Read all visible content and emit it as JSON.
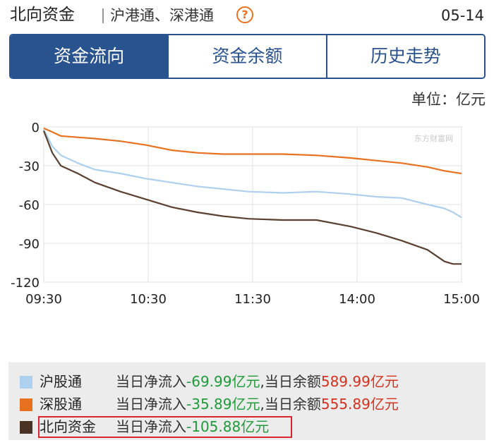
{
  "header": {
    "title": "北向资金",
    "subtitle": "沪港通、深港通",
    "help_symbol": "?",
    "date": "05-14"
  },
  "tabs": [
    {
      "label": "资金流向",
      "active": true
    },
    {
      "label": "资金余额",
      "active": false
    },
    {
      "label": "历史走势",
      "active": false
    }
  ],
  "unit_label": "单位：亿元",
  "watermark": "东方财富网",
  "colors": {
    "accent": "#28538f",
    "hgt": "#aed0ef",
    "sgt": "#e8711f",
    "north": "#5a4030",
    "positive": "#1f9b3a",
    "negative": "#d5311f"
  },
  "chart_data": {
    "type": "line",
    "x_ticks": [
      "09:30",
      "10:30",
      "11:30",
      "14:00",
      "15:00"
    ],
    "y_ticks": [
      0,
      -30,
      -60,
      -90,
      -120
    ],
    "ylim": [
      -120,
      0
    ],
    "grid": true,
    "series": [
      {
        "name": "沪股通",
        "color": "#aed0ef",
        "points": [
          [
            0,
            -2
          ],
          [
            5,
            -15
          ],
          [
            10,
            -22
          ],
          [
            20,
            -28
          ],
          [
            30,
            -33
          ],
          [
            45,
            -36
          ],
          [
            60,
            -40
          ],
          [
            75,
            -43
          ],
          [
            90,
            -46
          ],
          [
            105,
            -48
          ],
          [
            120,
            -50
          ],
          [
            140,
            -51
          ],
          [
            160,
            -50
          ],
          [
            180,
            -52
          ],
          [
            195,
            -54
          ],
          [
            210,
            -55
          ],
          [
            225,
            -60
          ],
          [
            235,
            -63
          ],
          [
            240,
            -66
          ],
          [
            245,
            -70
          ]
        ]
      },
      {
        "name": "深股通",
        "color": "#e8711f",
        "points": [
          [
            0,
            -1
          ],
          [
            5,
            -4
          ],
          [
            10,
            -7
          ],
          [
            20,
            -8
          ],
          [
            30,
            -9
          ],
          [
            45,
            -11
          ],
          [
            60,
            -14
          ],
          [
            75,
            -18
          ],
          [
            90,
            -20
          ],
          [
            105,
            -21
          ],
          [
            120,
            -21
          ],
          [
            140,
            -21
          ],
          [
            160,
            -22
          ],
          [
            180,
            -24
          ],
          [
            195,
            -26
          ],
          [
            210,
            -28
          ],
          [
            225,
            -31
          ],
          [
            235,
            -34
          ],
          [
            240,
            -35
          ],
          [
            245,
            -36
          ]
        ]
      },
      {
        "name": "北向资金",
        "color": "#5a4030",
        "points": [
          [
            0,
            -3
          ],
          [
            5,
            -20
          ],
          [
            10,
            -30
          ],
          [
            20,
            -36
          ],
          [
            30,
            -43
          ],
          [
            45,
            -50
          ],
          [
            60,
            -56
          ],
          [
            75,
            -62
          ],
          [
            90,
            -66
          ],
          [
            105,
            -69
          ],
          [
            120,
            -71
          ],
          [
            140,
            -72
          ],
          [
            160,
            -72
          ],
          [
            180,
            -77
          ],
          [
            195,
            -82
          ],
          [
            210,
            -88
          ],
          [
            225,
            -95
          ],
          [
            235,
            -104
          ],
          [
            240,
            -106
          ],
          [
            245,
            -106
          ]
        ]
      }
    ]
  },
  "legend": [
    {
      "name": "沪股通",
      "color": "#aed0ef",
      "inflow_label": "当日净流入",
      "inflow": "-69.99亿元",
      "sep": ",",
      "balance_label": "当日余额",
      "balance": "589.99亿元"
    },
    {
      "name": "深股通",
      "color": "#e8711f",
      "inflow_label": "当日净流入",
      "inflow": "-35.89亿元",
      "sep": ",",
      "balance_label": "当日余额",
      "balance": "555.89亿元"
    },
    {
      "name": "北向资金",
      "color": "#5a4030",
      "inflow_label": "当日净流入",
      "inflow": "-105.88亿元"
    }
  ]
}
